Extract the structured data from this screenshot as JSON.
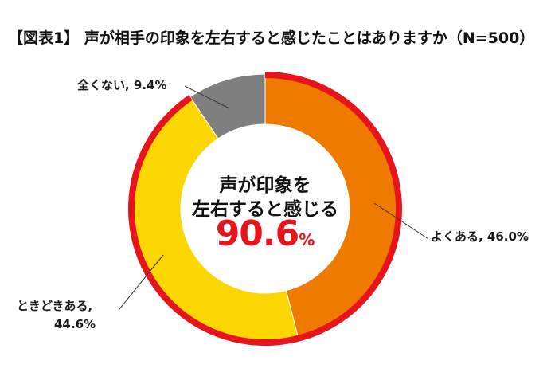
{
  "title": "【図表1】 声が相手の印象を左右すると感じたことはありますか（N=500）",
  "center": {
    "line1": "声が印象を",
    "line2": "左右すると感じる",
    "value": "90.6",
    "unit": "%"
  },
  "labels": {
    "often": "よくある, 46.0%",
    "sometimes_line1": "ときどきある,",
    "sometimes_line2": "44.6%",
    "not_at_all": "全くない, 9.4%"
  },
  "colors": {
    "highlight_ring": "#e8141b",
    "often": "#ee7b00",
    "sometimes": "#fcd600",
    "not_at_all": "#7f7f7f"
  },
  "chart_data": {
    "type": "pie",
    "donut": true,
    "categories": [
      "よくある",
      "ときどきある",
      "全くない"
    ],
    "values": [
      46.0,
      44.6,
      9.4
    ],
    "unit": "%",
    "n": 500,
    "highlight_total": 90.6
  }
}
